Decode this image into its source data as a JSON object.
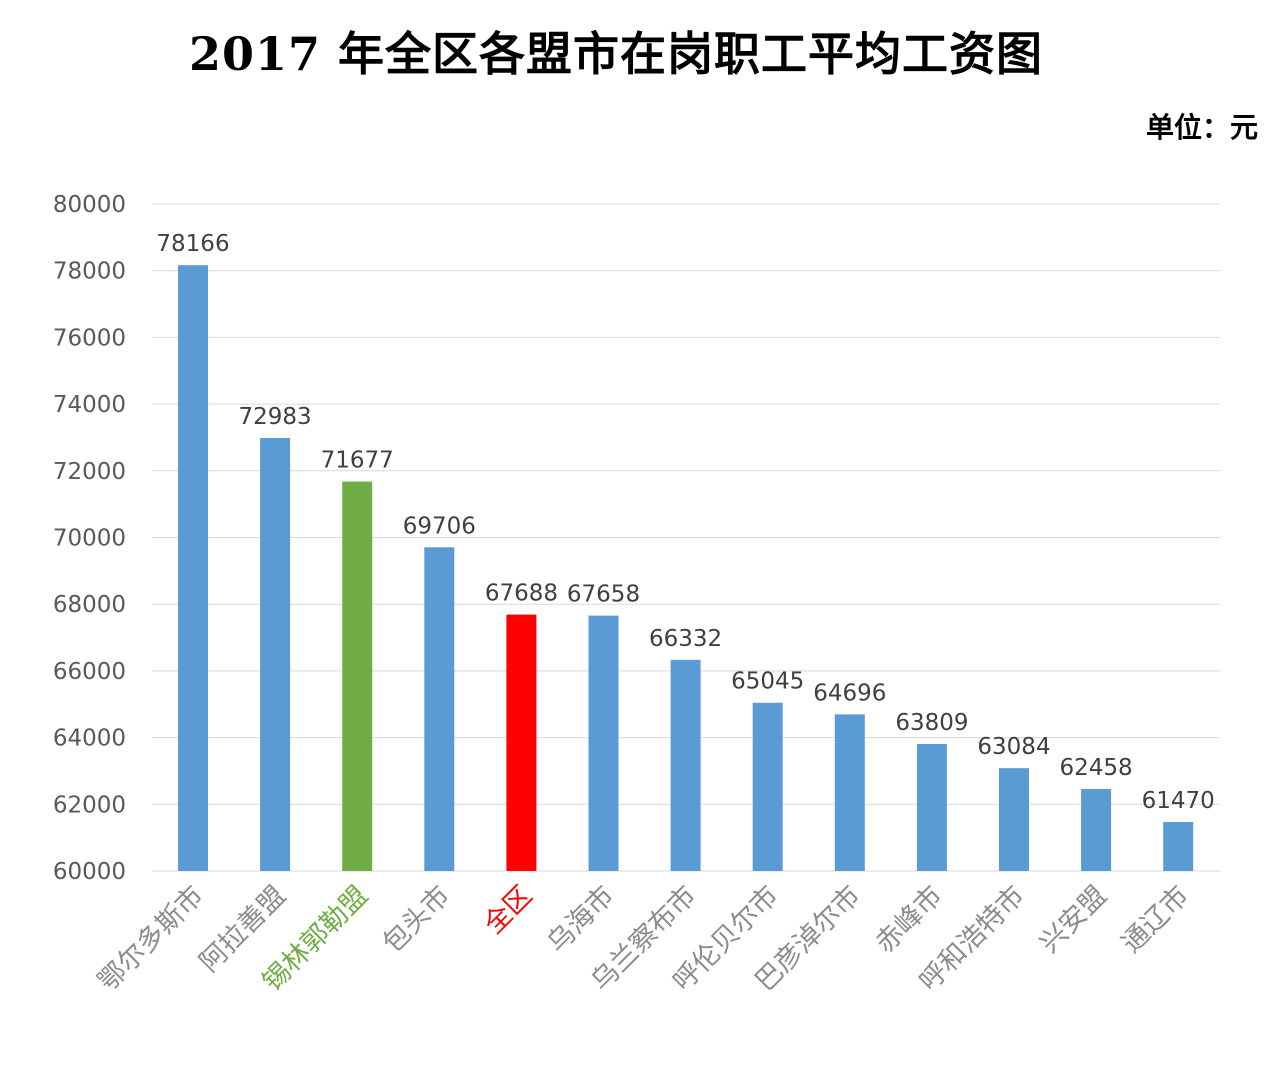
{
  "chart_data": {
    "type": "bar",
    "title": "2017 年全区各盟市在岗职工平均工资图",
    "unit_label": "单位：元",
    "ylim": [
      60000,
      80000
    ],
    "yticks": [
      60000,
      62000,
      64000,
      66000,
      68000,
      70000,
      72000,
      74000,
      76000,
      78000,
      80000
    ],
    "grid": true,
    "categories": [
      "鄂尔多斯市",
      "阿拉善盟",
      "锡林郭勒盟",
      "包头市",
      "全区",
      "乌海市",
      "乌兰察布市",
      "呼伦贝尔市",
      "巴彦淖尔市",
      "赤峰市",
      "呼和浩特市",
      "兴安盟",
      "通辽市"
    ],
    "values": [
      78166,
      72983,
      71677,
      69706,
      67688,
      67658,
      66332,
      65045,
      64696,
      63809,
      63084,
      62458,
      61470
    ],
    "data_labels": [
      "78166",
      "72983",
      "71677",
      "69706",
      "67688",
      "67658",
      "66332",
      "65045",
      "64696",
      "63809",
      "63084",
      "62458",
      "61470"
    ],
    "bar_colors": [
      "#5B9BD5",
      "#5B9BD5",
      "#70AD47",
      "#5B9BD5",
      "#FF0000",
      "#5B9BD5",
      "#5B9BD5",
      "#5B9BD5",
      "#5B9BD5",
      "#5B9BD5",
      "#5B9BD5",
      "#5B9BD5",
      "#5B9BD5"
    ],
    "label_colors": [
      "#8C8C8C",
      "#8C8C8C",
      "#70AD47",
      "#8C8C8C",
      "#FF0000",
      "#8C8C8C",
      "#8C8C8C",
      "#8C8C8C",
      "#8C8C8C",
      "#8C8C8C",
      "#8C8C8C",
      "#8C8C8C",
      "#8C8C8C"
    ],
    "gridline_color": "#D9D9D9"
  }
}
